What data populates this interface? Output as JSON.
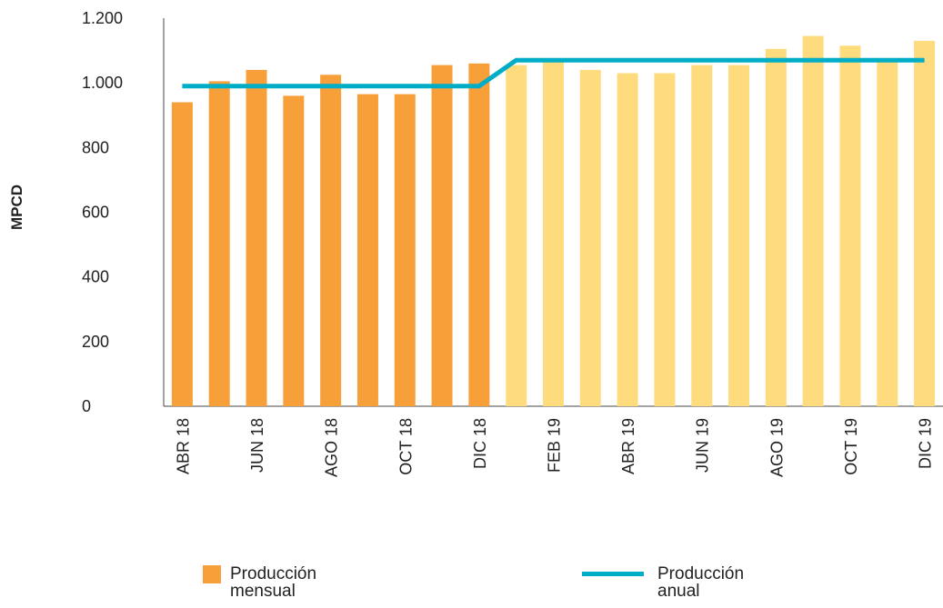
{
  "chart_data": {
    "type": "bar",
    "y_label": "MPCD",
    "categories": [
      "ABR 18",
      null,
      "JUN 18",
      null,
      "AGO 18",
      null,
      "OCT 18",
      null,
      "DIC 18",
      null,
      "FEB 19",
      null,
      "ABR 19",
      null,
      "JUN 19",
      null,
      "AGO 19",
      null,
      "OCT 19",
      null,
      "DIC 19"
    ],
    "series": [
      {
        "name": "Producción mensual",
        "type": "bar",
        "color": "#f7a03a",
        "colors": [
          "#f7a03a",
          "#f7a03a",
          "#f7a03a",
          "#f7a03a",
          "#f7a03a",
          "#f7a03a",
          "#f7a03a",
          "#f7a03a",
          "#f7a03a",
          "#fedb7d",
          "#fedb7d",
          "#fedb7d",
          "#fedb7d",
          "#fedb7d",
          "#fedb7d",
          "#fedb7d",
          "#fedb7d",
          "#fedb7d",
          "#fedb7d",
          "#fedb7d",
          "#fedb7d"
        ],
        "values": [
          940,
          1005,
          1040,
          960,
          1025,
          965,
          965,
          1055,
          1060,
          1055,
          1070,
          1040,
          1030,
          1030,
          1055,
          1055,
          1105,
          1145,
          1115,
          1065,
          1130
        ]
      },
      {
        "name": "Producción anual",
        "type": "line",
        "color": "#00adc6",
        "values": [
          990,
          990,
          990,
          990,
          990,
          990,
          990,
          990,
          990,
          1070,
          1070,
          1070,
          1070,
          1070,
          1070,
          1070,
          1070,
          1070,
          1070,
          1070,
          1070
        ]
      }
    ],
    "ylim": [
      0,
      1200
    ],
    "yticks": [
      0,
      200,
      400,
      600,
      800,
      {
        "value": 1000,
        "label": "1.000"
      },
      {
        "value": 1200,
        "label": "1.200"
      }
    ],
    "grid": false
  }
}
